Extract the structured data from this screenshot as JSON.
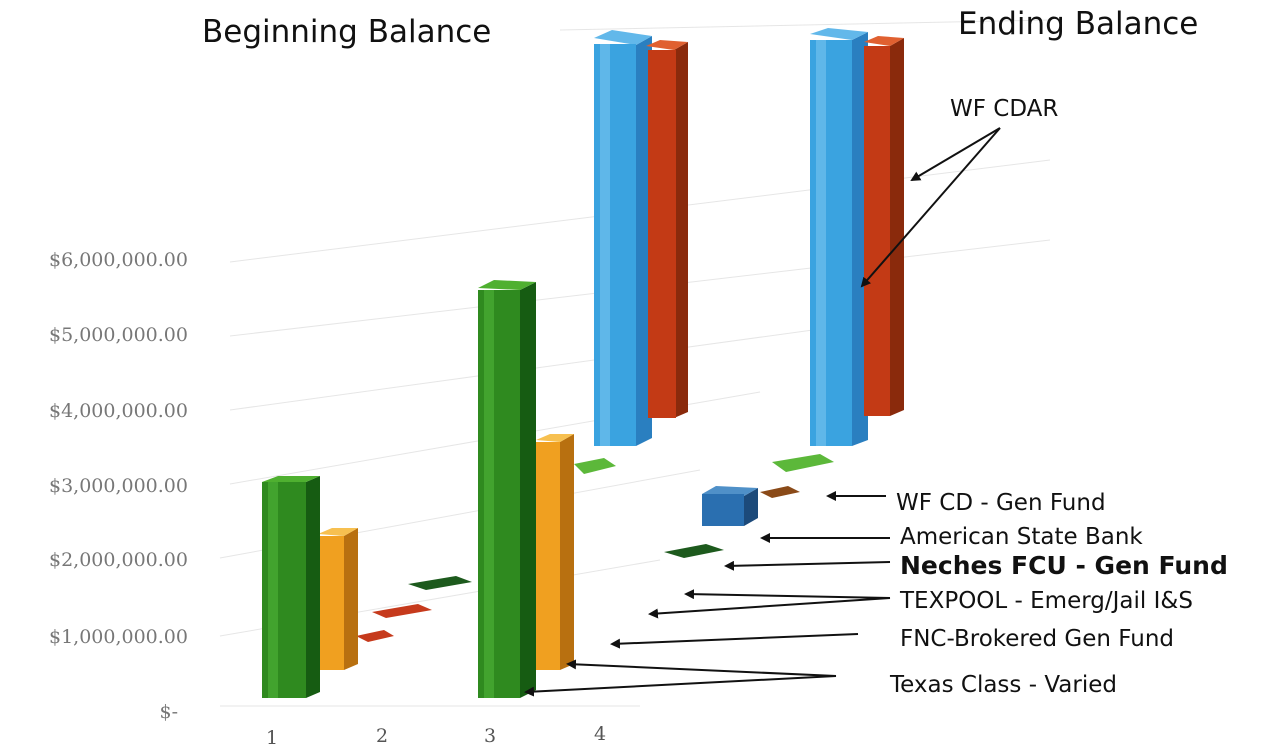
{
  "chart_data": {
    "type": "bar",
    "style": "3d-clustered",
    "categories": [
      "1",
      "2",
      "3",
      "4"
    ],
    "yticks": [
      "$-",
      "$1,000,000.00",
      "$2,000,000.00",
      "$3,000,000.00",
      "$4,000,000.00",
      "$5,000,000.00",
      "$6,000,000.00"
    ],
    "ylim": [
      0,
      6000000
    ],
    "grid": true,
    "series": [
      {
        "name": "Texas Class - Varied",
        "color": "#2f8a1f",
        "values": [
          2950000,
          0,
          5500000,
          0
        ]
      },
      {
        "name": "FNC-Brokered Gen Fund",
        "color": "#f0a020",
        "values": [
          2200000,
          0,
          3550000,
          0
        ]
      },
      {
        "name": "TEXPOOL - Emerg/Jail I&S",
        "color": "#c63a1c",
        "values": [
          0,
          10000,
          0,
          0
        ]
      },
      {
        "name": "Neches FCU - Gen Fund",
        "color": "#1e6e1e",
        "values": [
          0,
          10000,
          0,
          0
        ]
      },
      {
        "name": "American State Bank",
        "color": "#7a3a10",
        "values": [
          0,
          0,
          0,
          10000
        ]
      },
      {
        "name": "WF CD - Gen Fund",
        "color": "#2a6fb0",
        "values": [
          0,
          0,
          0,
          480000
        ]
      },
      {
        "name": "WF CDAR",
        "color": "#39a3e0",
        "values": [
          0,
          0,
          0,
          0
        ]
      }
    ],
    "annotations": {
      "beginning": "Beginning Balance",
      "ending": "Ending Balance",
      "wf_cdar": "WF CDAR",
      "wf_cd": "WF CD - Gen Fund",
      "american": "American State Bank",
      "neches": "Neches FCU - Gen Fund",
      "texpool": "TEXPOOL - Emerg/Jail I&S",
      "fnc": "FNC-Brokered Gen Fund",
      "texas": "Texas Class - Varied"
    },
    "back_row_values": {
      "wf_cdar_beginning": 5500000,
      "wf_cdar_ending": 5500000,
      "second_beginning": 5300000,
      "second_ending": 5300000
    }
  }
}
